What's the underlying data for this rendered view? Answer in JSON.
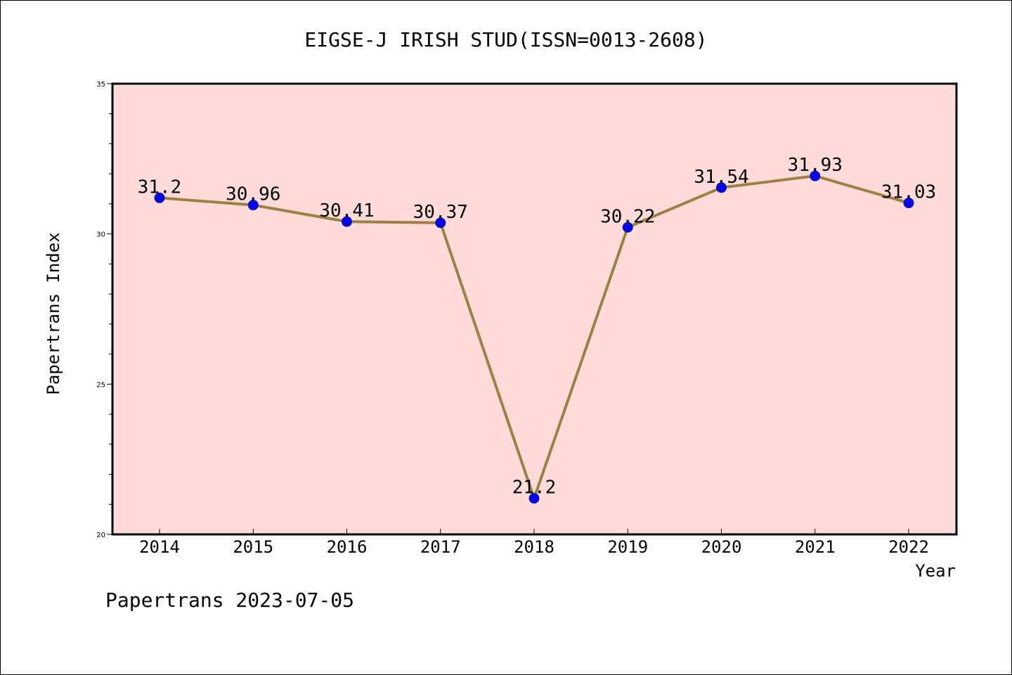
{
  "chart_data": {
    "type": "line",
    "title": "EIGSE-J IRISH STUD(ISSN=0013-2608)",
    "xlabel": "Year",
    "ylabel": "Papertrans Index",
    "categories": [
      "2014",
      "2015",
      "2016",
      "2017",
      "2018",
      "2019",
      "2020",
      "2021",
      "2022"
    ],
    "series": [
      {
        "values": [
          31.2,
          30.96,
          30.41,
          30.37,
          21.2,
          30.22,
          31.54,
          31.93,
          31.03
        ],
        "labels": [
          "31.2",
          "30.96",
          "30.41",
          "30.37",
          "21.2",
          "30.22",
          "31.54",
          "31.93",
          "31.03"
        ]
      }
    ],
    "ylim": [
      20,
      35
    ],
    "yticks": [
      "20",
      "25",
      "30",
      "35"
    ],
    "grid": false,
    "colors": {
      "plot_background": "#FFDCDA",
      "line": "#9C8240",
      "marker": "#0000FF"
    }
  },
  "footer": {
    "credit": "Papertrans 2023-07-05"
  }
}
